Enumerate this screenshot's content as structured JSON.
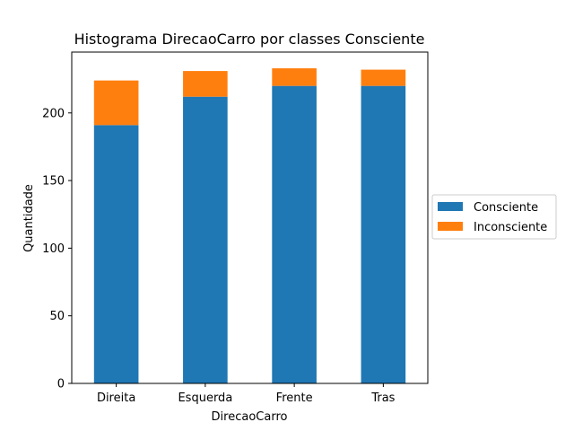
{
  "chart_data": {
    "type": "bar",
    "stacked": true,
    "title": "Histograma DirecaoCarro por classes Consciente",
    "xlabel": "DirecaoCarro",
    "ylabel": "Quantidade",
    "categories": [
      "Direita",
      "Esquerda",
      "Frente",
      "Tras"
    ],
    "series": [
      {
        "name": "Consciente",
        "color": "#1f77b4",
        "values": [
          191,
          212,
          220,
          220
        ]
      },
      {
        "name": "Inconsciente",
        "color": "#ff7f0e",
        "values": [
          33,
          19,
          13,
          12
        ]
      }
    ],
    "ylim": [
      0,
      245
    ],
    "yticks": [
      "0",
      "50",
      "100",
      "150",
      "200"
    ],
    "grid": false,
    "legend_position": "outside-right"
  }
}
